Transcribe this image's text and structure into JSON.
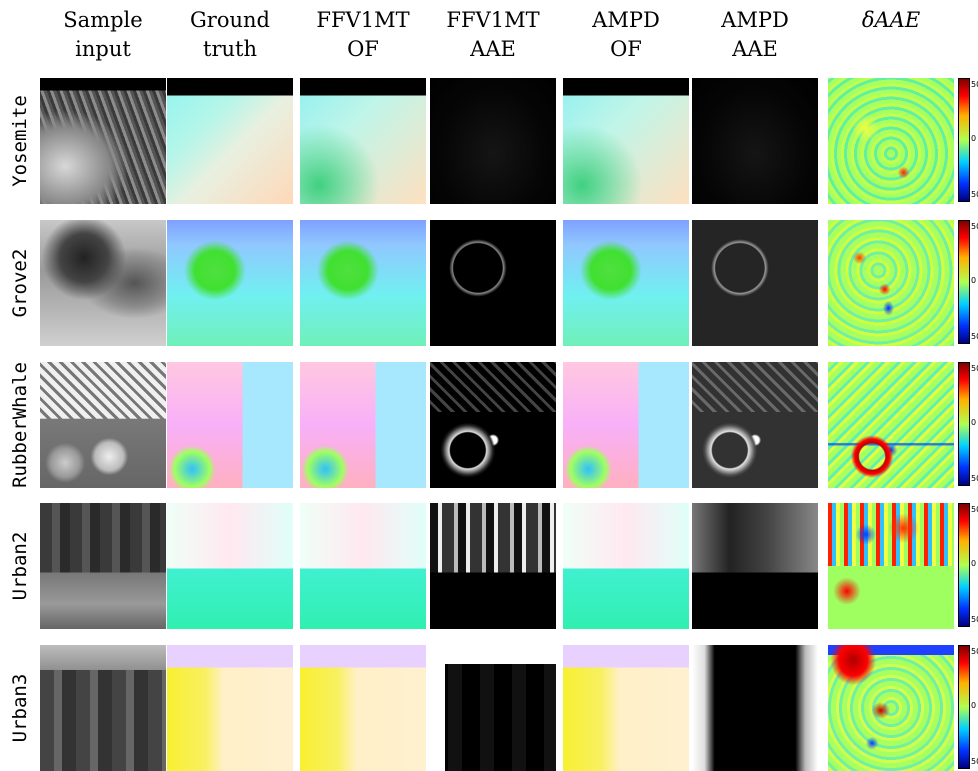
{
  "columns": [
    {
      "line1": "Sample",
      "line2": "input"
    },
    {
      "line1": "Ground",
      "line2": "truth"
    },
    {
      "line1": "FFV1MT",
      "line2": "OF"
    },
    {
      "line1": "FFV1MT",
      "line2": "AAE"
    },
    {
      "line1": "AMPD",
      "line2": "OF"
    },
    {
      "line1": "AMPD",
      "line2": "AAE"
    },
    {
      "line1": "δAAE",
      "line2": ""
    }
  ],
  "rows": [
    "Yosemite",
    "Grove2",
    "RubberWhale",
    "Urban2",
    "Urban3"
  ],
  "colorbar": {
    "top_label": "50",
    "mid_label": "0",
    "bottom_label": "50"
  }
}
